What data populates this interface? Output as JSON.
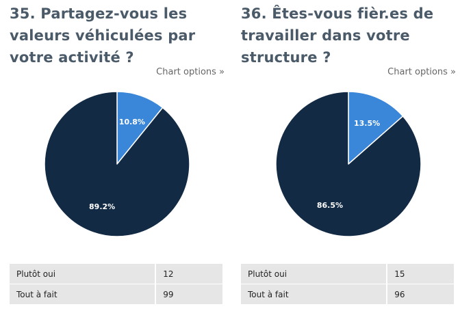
{
  "chart_options_label": "Chart options »",
  "colors": {
    "slice_1": "#3a86d8",
    "slice_2": "#132a45",
    "table_bg": "#e6e6e6"
  },
  "questions": [
    {
      "title": "35. Partagez-vous les valeurs véhiculées par votre activité ?",
      "rows": [
        {
          "label": "Plutôt oui",
          "value": "12"
        },
        {
          "label": "Tout à fait",
          "value": "99"
        }
      ]
    },
    {
      "title": "36. Êtes-vous fièr.es de travailler dans votre structure ?",
      "rows": [
        {
          "label": "Plutôt oui",
          "value": "15"
        },
        {
          "label": "Tout à fait",
          "value": "96"
        }
      ]
    }
  ],
  "chart_data": [
    {
      "type": "pie",
      "title": "35. Partagez-vous les valeurs véhiculées par votre activité ?",
      "categories": [
        "Plutôt oui",
        "Tout à fait"
      ],
      "values": [
        12,
        99
      ],
      "percent_labels": [
        "10.8%",
        "89.2%"
      ]
    },
    {
      "type": "pie",
      "title": "36. Êtes-vous fièr.es de travailler dans votre structure ?",
      "categories": [
        "Plutôt oui",
        "Tout à fait"
      ],
      "values": [
        15,
        96
      ],
      "percent_labels": [
        "13.5%",
        "86.5%"
      ]
    }
  ]
}
